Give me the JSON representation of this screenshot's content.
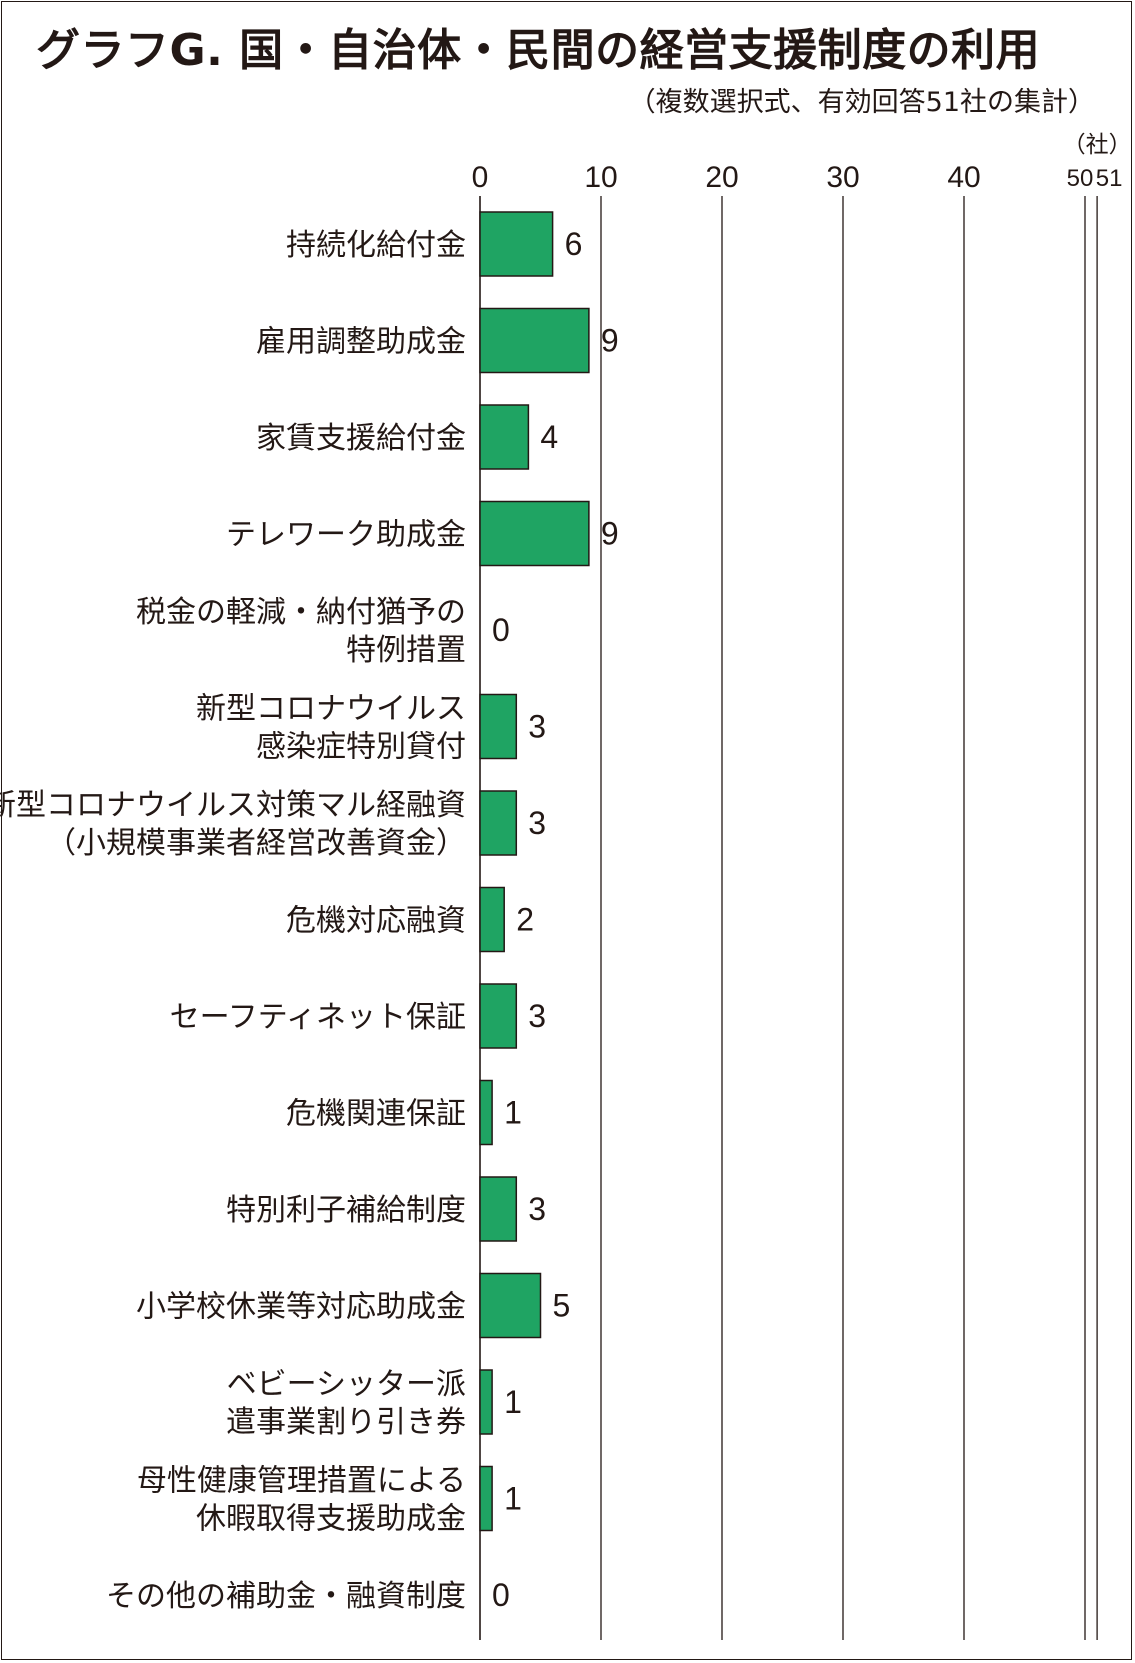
{
  "title": "グラフG. 国・自治体・民間の経営支援制度の利用",
  "subtitle": "（複数選択式、有効回答51社の集計）",
  "colors": {
    "bar": "#1fa463",
    "bar_stroke": "#231815",
    "text": "#231815"
  },
  "chart_data": {
    "type": "bar",
    "orientation": "horizontal",
    "title": "グラフG. 国・自治体・民間の経営支援制度の利用",
    "subtitle": "（複数選択式、有効回答51社の集計）",
    "xlabel": "（社）",
    "xlim": [
      0,
      51
    ],
    "xticks": [
      0,
      10,
      20,
      30,
      40,
      50,
      51
    ],
    "grid": true,
    "categories": [
      [
        "持続化給付金"
      ],
      [
        "雇用調整助成金"
      ],
      [
        "家賃支援給付金"
      ],
      [
        "テレワーク助成金"
      ],
      [
        "税金の軽減・納付猶予の",
        "特例措置"
      ],
      [
        "新型コロナウイルス",
        "感染症特別貸付"
      ],
      [
        "新型コロナウイルス対策マル経融資",
        "（小規模事業者経営改善資金）"
      ],
      [
        "危機対応融資"
      ],
      [
        "セーフティネット保証"
      ],
      [
        "危機関連保証"
      ],
      [
        "特別利子補給制度"
      ],
      [
        "小学校休業等対応助成金"
      ],
      [
        "ベビーシッター派",
        "遣事業割り引き券"
      ],
      [
        "母性健康管理措置による",
        "休暇取得支援助成金"
      ],
      [
        "その他の補助金・融資制度"
      ]
    ],
    "values": [
      6,
      9,
      4,
      9,
      0,
      3,
      3,
      2,
      3,
      1,
      3,
      5,
      1,
      1,
      0
    ]
  }
}
